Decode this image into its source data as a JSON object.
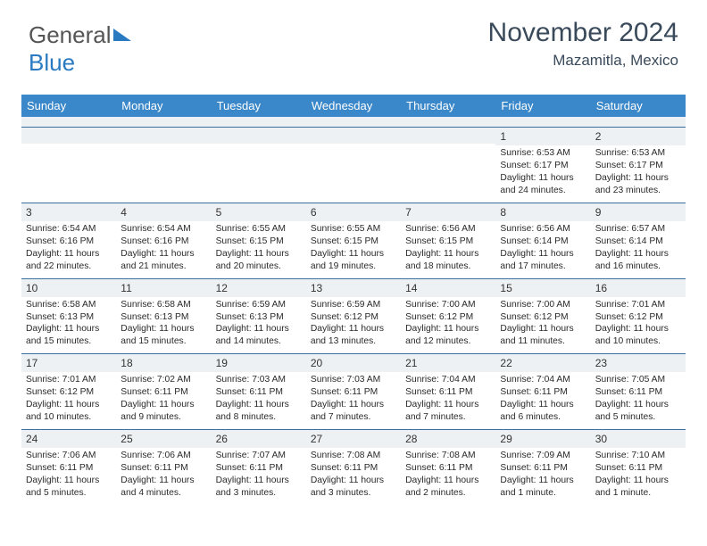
{
  "logo": {
    "part1": "General",
    "part2": "Blue"
  },
  "title": {
    "month": "November 2024",
    "location": "Mazamitla, Mexico"
  },
  "headers": [
    "Sunday",
    "Monday",
    "Tuesday",
    "Wednesday",
    "Thursday",
    "Friday",
    "Saturday"
  ],
  "colors": {
    "header_bg": "#3a87c9",
    "header_fg": "#ffffff",
    "row_sep": "#3a6fa0",
    "num_bg": "#eef1f3",
    "logo_blue": "#2a7ac2",
    "title_fg": "#3a4a5a"
  },
  "weeks": [
    [
      {
        "n": "",
        "lines": []
      },
      {
        "n": "",
        "lines": []
      },
      {
        "n": "",
        "lines": []
      },
      {
        "n": "",
        "lines": []
      },
      {
        "n": "",
        "lines": []
      },
      {
        "n": "1",
        "lines": [
          "Sunrise: 6:53 AM",
          "Sunset: 6:17 PM",
          "Daylight: 11 hours",
          "and 24 minutes."
        ]
      },
      {
        "n": "2",
        "lines": [
          "Sunrise: 6:53 AM",
          "Sunset: 6:17 PM",
          "Daylight: 11 hours",
          "and 23 minutes."
        ]
      }
    ],
    [
      {
        "n": "3",
        "lines": [
          "Sunrise: 6:54 AM",
          "Sunset: 6:16 PM",
          "Daylight: 11 hours",
          "and 22 minutes."
        ]
      },
      {
        "n": "4",
        "lines": [
          "Sunrise: 6:54 AM",
          "Sunset: 6:16 PM",
          "Daylight: 11 hours",
          "and 21 minutes."
        ]
      },
      {
        "n": "5",
        "lines": [
          "Sunrise: 6:55 AM",
          "Sunset: 6:15 PM",
          "Daylight: 11 hours",
          "and 20 minutes."
        ]
      },
      {
        "n": "6",
        "lines": [
          "Sunrise: 6:55 AM",
          "Sunset: 6:15 PM",
          "Daylight: 11 hours",
          "and 19 minutes."
        ]
      },
      {
        "n": "7",
        "lines": [
          "Sunrise: 6:56 AM",
          "Sunset: 6:15 PM",
          "Daylight: 11 hours",
          "and 18 minutes."
        ]
      },
      {
        "n": "8",
        "lines": [
          "Sunrise: 6:56 AM",
          "Sunset: 6:14 PM",
          "Daylight: 11 hours",
          "and 17 minutes."
        ]
      },
      {
        "n": "9",
        "lines": [
          "Sunrise: 6:57 AM",
          "Sunset: 6:14 PM",
          "Daylight: 11 hours",
          "and 16 minutes."
        ]
      }
    ],
    [
      {
        "n": "10",
        "lines": [
          "Sunrise: 6:58 AM",
          "Sunset: 6:13 PM",
          "Daylight: 11 hours",
          "and 15 minutes."
        ]
      },
      {
        "n": "11",
        "lines": [
          "Sunrise: 6:58 AM",
          "Sunset: 6:13 PM",
          "Daylight: 11 hours",
          "and 15 minutes."
        ]
      },
      {
        "n": "12",
        "lines": [
          "Sunrise: 6:59 AM",
          "Sunset: 6:13 PM",
          "Daylight: 11 hours",
          "and 14 minutes."
        ]
      },
      {
        "n": "13",
        "lines": [
          "Sunrise: 6:59 AM",
          "Sunset: 6:12 PM",
          "Daylight: 11 hours",
          "and 13 minutes."
        ]
      },
      {
        "n": "14",
        "lines": [
          "Sunrise: 7:00 AM",
          "Sunset: 6:12 PM",
          "Daylight: 11 hours",
          "and 12 minutes."
        ]
      },
      {
        "n": "15",
        "lines": [
          "Sunrise: 7:00 AM",
          "Sunset: 6:12 PM",
          "Daylight: 11 hours",
          "and 11 minutes."
        ]
      },
      {
        "n": "16",
        "lines": [
          "Sunrise: 7:01 AM",
          "Sunset: 6:12 PM",
          "Daylight: 11 hours",
          "and 10 minutes."
        ]
      }
    ],
    [
      {
        "n": "17",
        "lines": [
          "Sunrise: 7:01 AM",
          "Sunset: 6:12 PM",
          "Daylight: 11 hours",
          "and 10 minutes."
        ]
      },
      {
        "n": "18",
        "lines": [
          "Sunrise: 7:02 AM",
          "Sunset: 6:11 PM",
          "Daylight: 11 hours",
          "and 9 minutes."
        ]
      },
      {
        "n": "19",
        "lines": [
          "Sunrise: 7:03 AM",
          "Sunset: 6:11 PM",
          "Daylight: 11 hours",
          "and 8 minutes."
        ]
      },
      {
        "n": "20",
        "lines": [
          "Sunrise: 7:03 AM",
          "Sunset: 6:11 PM",
          "Daylight: 11 hours",
          "and 7 minutes."
        ]
      },
      {
        "n": "21",
        "lines": [
          "Sunrise: 7:04 AM",
          "Sunset: 6:11 PM",
          "Daylight: 11 hours",
          "and 7 minutes."
        ]
      },
      {
        "n": "22",
        "lines": [
          "Sunrise: 7:04 AM",
          "Sunset: 6:11 PM",
          "Daylight: 11 hours",
          "and 6 minutes."
        ]
      },
      {
        "n": "23",
        "lines": [
          "Sunrise: 7:05 AM",
          "Sunset: 6:11 PM",
          "Daylight: 11 hours",
          "and 5 minutes."
        ]
      }
    ],
    [
      {
        "n": "24",
        "lines": [
          "Sunrise: 7:06 AM",
          "Sunset: 6:11 PM",
          "Daylight: 11 hours",
          "and 5 minutes."
        ]
      },
      {
        "n": "25",
        "lines": [
          "Sunrise: 7:06 AM",
          "Sunset: 6:11 PM",
          "Daylight: 11 hours",
          "and 4 minutes."
        ]
      },
      {
        "n": "26",
        "lines": [
          "Sunrise: 7:07 AM",
          "Sunset: 6:11 PM",
          "Daylight: 11 hours",
          "and 3 minutes."
        ]
      },
      {
        "n": "27",
        "lines": [
          "Sunrise: 7:08 AM",
          "Sunset: 6:11 PM",
          "Daylight: 11 hours",
          "and 3 minutes."
        ]
      },
      {
        "n": "28",
        "lines": [
          "Sunrise: 7:08 AM",
          "Sunset: 6:11 PM",
          "Daylight: 11 hours",
          "and 2 minutes."
        ]
      },
      {
        "n": "29",
        "lines": [
          "Sunrise: 7:09 AM",
          "Sunset: 6:11 PM",
          "Daylight: 11 hours",
          "and 1 minute."
        ]
      },
      {
        "n": "30",
        "lines": [
          "Sunrise: 7:10 AM",
          "Sunset: 6:11 PM",
          "Daylight: 11 hours",
          "and 1 minute."
        ]
      }
    ]
  ]
}
